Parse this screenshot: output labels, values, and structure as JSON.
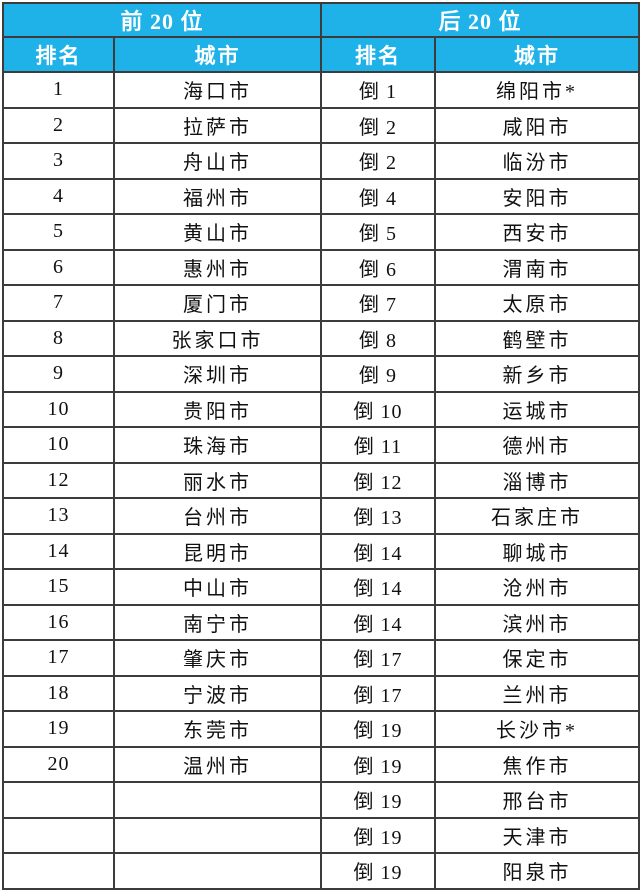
{
  "colors": {
    "header_bg": "#1FB2E8",
    "header_text": "#FFFFFF",
    "border": "#3C3C3C",
    "cell_bg": "#FFFFFF",
    "cell_text": "#111111"
  },
  "header": {
    "left_group": "前 20 位",
    "right_group": "后 20 位",
    "left_rank_label": "排名",
    "left_city_label": "城市",
    "right_rank_label": "排名",
    "right_city_label": "城市"
  },
  "rows": [
    [
      "1",
      "海口市",
      "倒 1",
      "绵阳市*"
    ],
    [
      "2",
      "拉萨市",
      "倒 2",
      "咸阳市"
    ],
    [
      "3",
      "舟山市",
      "倒 2",
      "临汾市"
    ],
    [
      "4",
      "福州市",
      "倒 4",
      "安阳市"
    ],
    [
      "5",
      "黄山市",
      "倒 5",
      "西安市"
    ],
    [
      "6",
      "惠州市",
      "倒 6",
      "渭南市"
    ],
    [
      "7",
      "厦门市",
      "倒 7",
      "太原市"
    ],
    [
      "8",
      "张家口市",
      "倒 8",
      "鹤壁市"
    ],
    [
      "9",
      "深圳市",
      "倒 9",
      "新乡市"
    ],
    [
      "10",
      "贵阳市",
      "倒 10",
      "运城市"
    ],
    [
      "10",
      "珠海市",
      "倒 11",
      "德州市"
    ],
    [
      "12",
      "丽水市",
      "倒 12",
      "淄博市"
    ],
    [
      "13",
      "台州市",
      "倒 13",
      "石家庄市"
    ],
    [
      "14",
      "昆明市",
      "倒 14",
      "聊城市"
    ],
    [
      "15",
      "中山市",
      "倒 14",
      "沧州市"
    ],
    [
      "16",
      "南宁市",
      "倒 14",
      "滨州市"
    ],
    [
      "17",
      "肇庆市",
      "倒 17",
      "保定市"
    ],
    [
      "18",
      "宁波市",
      "倒 17",
      "兰州市"
    ],
    [
      "19",
      "东莞市",
      "倒 19",
      "长沙市*"
    ],
    [
      "20",
      "温州市",
      "倒 19",
      "焦作市"
    ],
    [
      "",
      "",
      "倒 19",
      "邢台市"
    ],
    [
      "",
      "",
      "倒 19",
      "天津市"
    ],
    [
      "",
      "",
      "倒 19",
      "阳泉市"
    ]
  ]
}
